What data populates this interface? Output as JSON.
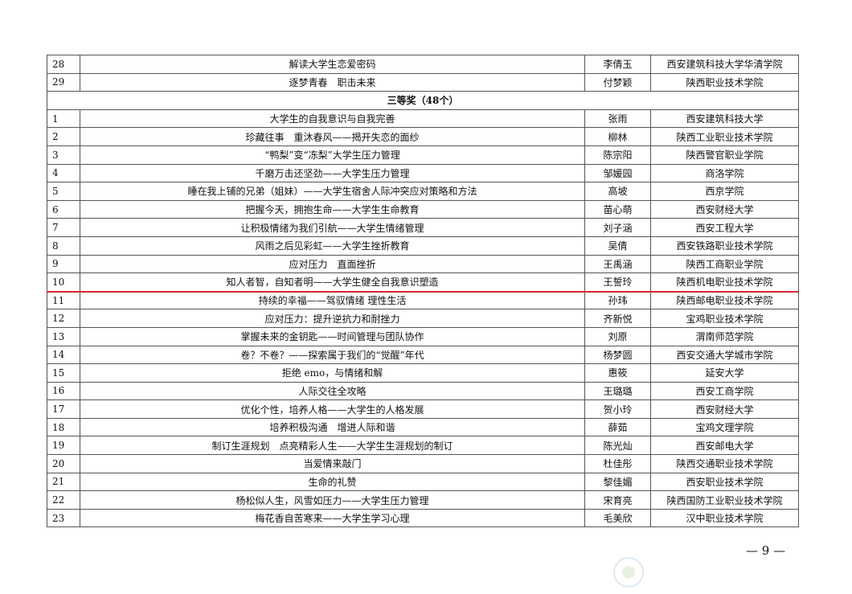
{
  "section_title": "三等奖（48个）",
  "rows_before": [
    {
      "no": "28",
      "title": "解读大学生恋爱密码",
      "name": "李倩玉",
      "school": "西安建筑科技大学华清学院"
    },
    {
      "no": "29",
      "title": "逐梦青春　职击未来",
      "name": "付梦颖",
      "school": "陕西职业技术学院"
    }
  ],
  "rows": [
    {
      "no": "1",
      "title": "大学生的自我意识与自我完善",
      "name": "张雨",
      "school": "西安建筑科技大学"
    },
    {
      "no": "2",
      "title": "珍藏往事　重沐春风——揭开失恋的面纱",
      "name": "柳林",
      "school": "陕西工业职业技术学院"
    },
    {
      "no": "3",
      "title": "“鸭梨”变“冻梨”大学生压力管理",
      "name": "陈宗阳",
      "school": "陕西警官职业学院"
    },
    {
      "no": "4",
      "title": "千磨万击还坚劲——大学生压力管理",
      "name": "邹媛园",
      "school": "商洛学院"
    },
    {
      "no": "5",
      "title": "睡在我上铺的兄弟（姐妹）——大学生宿舍人际冲突应对策略和方法",
      "name": "高坡",
      "school": "西京学院"
    },
    {
      "no": "6",
      "title": "把握今天，拥抱生命——大学生生命教育",
      "name": "苗心萌",
      "school": "西安财经大学"
    },
    {
      "no": "7",
      "title": "让积极情绪为我们引航——大学生情绪管理",
      "name": "刘子涵",
      "school": "西安工程大学"
    },
    {
      "no": "8",
      "title": "风雨之后见彩虹——大学生挫折教育",
      "name": "吴倩",
      "school": "西安铁路职业技术学院"
    },
    {
      "no": "9",
      "title": "应对压力　直面挫折",
      "name": "王禹涵",
      "school": "陕西工商职业学院"
    },
    {
      "no": "10",
      "title": "知人者智，自知者明——大学生健全自我意识塑造",
      "name": "王誓玲",
      "school": "陕西机电职业技术学院"
    },
    {
      "no": "11",
      "title": "持续的幸福——驾驭情绪 理性生活",
      "name": "孙玮",
      "school": "陕西邮电职业技术学院"
    },
    {
      "no": "12",
      "title": "应对压力：提升逆抗力和耐挫力",
      "name": "齐新悦",
      "school": "宝鸡职业技术学院"
    },
    {
      "no": "13",
      "title": "掌握未来的金钥匙——时间管理与团队协作",
      "name": "刘原",
      "school": "渭南师范学院"
    },
    {
      "no": "14",
      "title": "卷？不卷？——探索属于我们的“觉醒”年代",
      "name": "杨梦圆",
      "school": "西安交通大学城市学院"
    },
    {
      "no": "15",
      "title": "拒绝 emo，与情绪和解",
      "name": "惠筱",
      "school": "延安大学"
    },
    {
      "no": "16",
      "title": "人际交往全攻略",
      "name": "王璐璐",
      "school": "西安工商学院"
    },
    {
      "no": "17",
      "title": "优化个性，培养人格——大学生的人格发展",
      "name": "贺小玲",
      "school": "西安财经大学"
    },
    {
      "no": "18",
      "title": "培养积极沟通　增进人际和谐",
      "name": "薛茹",
      "school": "宝鸡文理学院"
    },
    {
      "no": "19",
      "title": "制订生涯规划　点亮精彩人生——大学生生涯规划的制订",
      "name": "陈光灿",
      "school": "西安邮电大学"
    },
    {
      "no": "20",
      "title": "当爱情来敲门",
      "name": "杜佳彤",
      "school": "陕西交通职业技术学院"
    },
    {
      "no": "21",
      "title": "生命的礼赞",
      "name": "黎佳媚",
      "school": "西安职业技术学院"
    },
    {
      "no": "22",
      "title": "杨松似人生，风雪如压力——大学生压力管理",
      "name": "宋育亮",
      "school": "陕西国防工业职业技术学院"
    },
    {
      "no": "23",
      "title": "梅花香自苦寒来——大学生学习心理",
      "name": "毛美欣",
      "school": "汉中职业技术学院"
    }
  ],
  "page_number": "— 9 —",
  "colors": {
    "annotation_line": "#d9252f",
    "border": "#555555"
  }
}
